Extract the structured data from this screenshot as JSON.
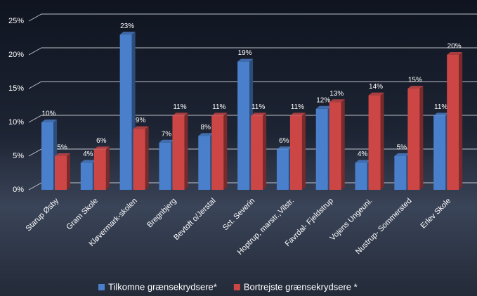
{
  "chart_data": {
    "type": "bar",
    "categories": [
      "Starup Øsby",
      "Gram Skole",
      "Kløvermark-skolen",
      "Bregnbjerg",
      "Bevtoft o/Jerstal",
      "Sct. Severin",
      "Hoptrup, marstr.,Vilstr.",
      "Favrdal- Fjeldstrup",
      "Vojens Ungeuni.",
      "Nustrup- Sommersted",
      "Erlev Skole"
    ],
    "series": [
      {
        "name": "Tilkomne grænsekrydsere*",
        "color": "#4a7fcc",
        "values": [
          10,
          4,
          23,
          7,
          8,
          19,
          6,
          12,
          4,
          5,
          11
        ],
        "value_labels": [
          "10%",
          "4%",
          "23%",
          "7%",
          "8%",
          "19%",
          "6%",
          "12%",
          "4%",
          "5%",
          "11%"
        ]
      },
      {
        "name": "Bortrejste grænsekrydsere *",
        "color": "#cc4646",
        "values": [
          5,
          6,
          9,
          11,
          11,
          11,
          11,
          13,
          14,
          15,
          20
        ],
        "value_labels": [
          "5%",
          "6%",
          "9%",
          "11%",
          "11%",
          "11%",
          "11%",
          "13%",
          "14%",
          "15%",
          "20%"
        ]
      }
    ],
    "ylim": [
      0,
      25
    ],
    "yticks": [
      {
        "value": 0,
        "label": "0%"
      },
      {
        "value": 5,
        "label": "5%"
      },
      {
        "value": 10,
        "label": "10%"
      },
      {
        "value": 15,
        "label": "15%"
      },
      {
        "value": 20,
        "label": "20%"
      },
      {
        "value": 25,
        "label": "25%"
      }
    ],
    "grid": true,
    "legend": "bottom"
  }
}
